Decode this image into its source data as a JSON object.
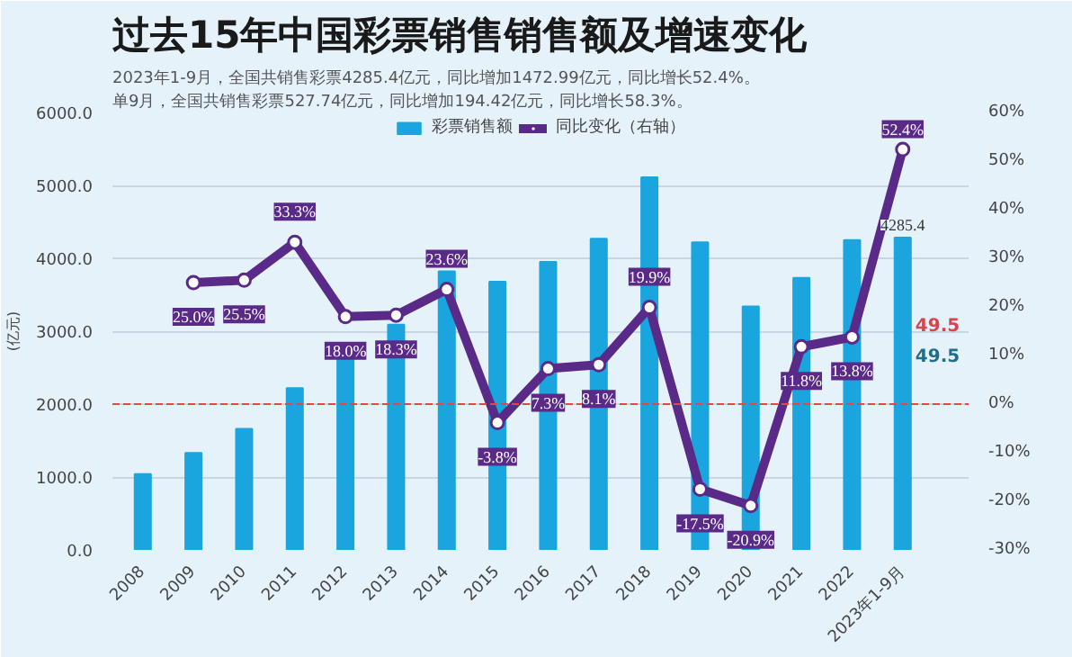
{
  "chart_data": {
    "type": "bar",
    "title": "过去15年中国彩票销售销售额及增速变化",
    "subtitle": "2023年1-9月，全国共销售彩票4285.4亿元，同比增加1472.99亿元，同比增长52.4%。",
    "ylabel": "(亿元)",
    "categories": [
      "2008",
      "2009",
      "2010",
      "2011",
      "2012",
      "2013",
      "2014",
      "2015",
      "2016",
      "2017",
      "2018",
      "2019",
      "2020",
      "2021",
      "2022",
      "2023年1-9月"
    ],
    "series": [
      {
        "name": "彩票销售额",
        "color": "#1ba5de",
        "values": [
          1040,
          1330,
          1660,
          2220,
          2620,
          3090,
          3820,
          3680,
          3950,
          4270,
          5110,
          4220,
          3340,
          3730,
          4250,
          4285.4
        ],
        "value_labels": [
          null,
          null,
          null,
          null,
          null,
          null,
          null,
          null,
          null,
          null,
          null,
          null,
          null,
          null,
          null,
          "4285.4"
        ]
      },
      {
        "name": "同比变化（右轴）",
        "type": "line",
        "axis": "y2",
        "color": "#5a2a88",
        "marker": "circle",
        "values": [
          null,
          25.0,
          25.5,
          33.3,
          18.0,
          18.3,
          23.6,
          -3.8,
          7.3,
          8.1,
          19.9,
          -17.5,
          -20.9,
          11.8,
          13.8,
          52.4
        ],
        "value_labels": [
          null,
          "25.0%",
          "25.5%",
          "33.3%",
          "18.0%",
          "18.3%",
          "23.6%",
          "-3.8%",
          "7.3%",
          "8.1%",
          "19.9%",
          "-17.5%",
          "-20.9%",
          "11.8%",
          "13.8%",
          "52.4%"
        ]
      }
    ],
    "ylim": [
      0,
      6000
    ],
    "yticks": [
      {
        "value": 0,
        "label": "0.0"
      },
      {
        "value": 1000,
        "label": "1000.0"
      },
      {
        "value": 2000,
        "label": "2000.0"
      },
      {
        "value": 3000,
        "label": "3000.0"
      },
      {
        "value": 4000,
        "label": "4000.0"
      },
      {
        "value": 5000,
        "label": "5000.0"
      },
      {
        "value": 6000,
        "label": "6000.0"
      }
    ],
    "y2lim": [
      -30,
      60
    ],
    "y2ticks": [
      {
        "value": -30,
        "label": "-30%"
      },
      {
        "value": -20,
        "label": "-20%"
      },
      {
        "value": -10,
        "label": "-10%"
      },
      {
        "value": 0,
        "label": "0%"
      },
      {
        "value": 10,
        "label": "10%"
      },
      {
        "value": 20,
        "label": "20%"
      },
      {
        "value": 30,
        "label": "30%"
      },
      {
        "value": 40,
        "label": "40%"
      },
      {
        "value": 50,
        "label": "50%"
      },
      {
        "value": 60,
        "label": "60%"
      }
    ],
    "ref_lines": [
      {
        "axis": "y2",
        "value": 0,
        "color": "#e04848",
        "line_style": "dashed"
      }
    ],
    "annotations": [
      "单9月，全国共销售彩票527.74亿元，同比增加194.42亿元，同比增长58.3%。",
      "49.5",
      "49.5"
    ],
    "grid": "y",
    "legend": "top"
  }
}
